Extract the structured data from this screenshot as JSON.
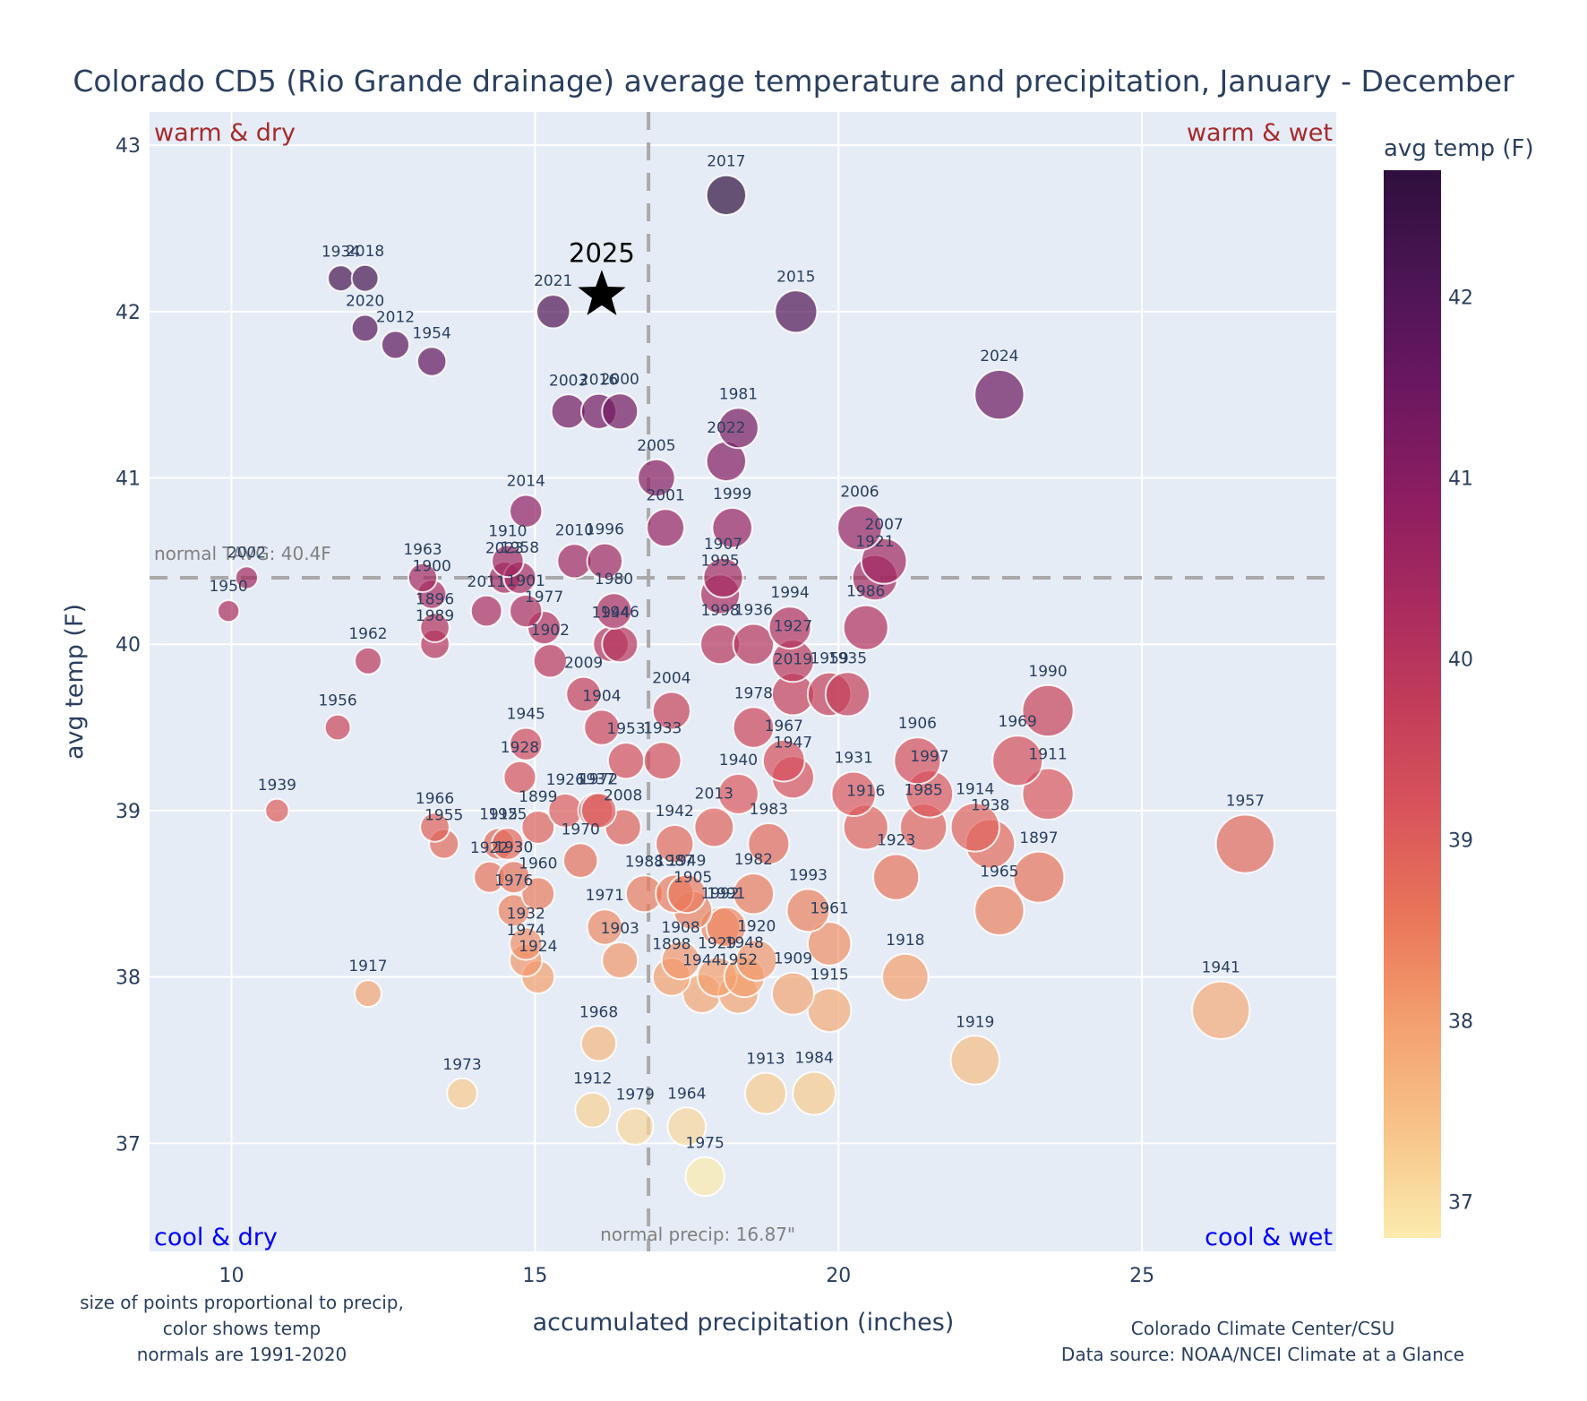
{
  "chart_data": {
    "type": "scatter",
    "title": "Colorado CD5 (Rio Grande drainage) average temperature and precipitation, January - December",
    "xlabel": "accumulated precipitation (inches)",
    "ylabel": "avg temp (F)",
    "xlim": [
      8.65,
      28.2
    ],
    "ylim": [
      36.35,
      43.2
    ],
    "xticks": [
      10,
      15,
      20,
      25
    ],
    "yticks": [
      37,
      38,
      39,
      40,
      41,
      42,
      43
    ],
    "grid": true,
    "size_encoding": "precipitation",
    "color_encoding": "avg temp (F)",
    "colorscale": [
      "#fcfdbf",
      "#fec287",
      "#fb8861",
      "#e3545c",
      "#b73779",
      "#8c2981",
      "#5f187f",
      "#2b1158",
      "#0d0887"
    ],
    "colorbar": {
      "title": "avg temp (F)",
      "range": [
        36.8,
        42.7
      ],
      "ticks": [
        37,
        38,
        39,
        40,
        41,
        42
      ],
      "stops": [
        "#fbebae",
        "#f7c48a",
        "#f4a06f",
        "#e9765a",
        "#d9545b",
        "#c23c5a",
        "#a72a5f",
        "#8a1d61",
        "#6a1760",
        "#4b1553",
        "#2e0f3d"
      ]
    },
    "reference_lines": {
      "normal_temp": 40.4,
      "normal_temp_label": "normal TAVG: 40.4F",
      "normal_precip": 16.87,
      "normal_precip_label": "normal precip: 16.87\""
    },
    "highlight": {
      "year": "2025",
      "precip": 16.1,
      "temp": 42.1,
      "marker": "star"
    },
    "quadrants": {
      "top_left": "warm & dry",
      "top_right": "warm & wet",
      "bottom_left": "cool & dry",
      "bottom_right": "cool & wet"
    },
    "points": [
      {
        "year": "2017",
        "precip": 18.15,
        "temp": 42.7
      },
      {
        "year": "1934",
        "precip": 11.8,
        "temp": 42.2
      },
      {
        "year": "2018",
        "precip": 12.2,
        "temp": 42.2
      },
      {
        "year": "2021",
        "precip": 15.3,
        "temp": 42.0
      },
      {
        "year": "2015",
        "precip": 19.3,
        "temp": 42.0
      },
      {
        "year": "2020",
        "precip": 12.2,
        "temp": 41.9
      },
      {
        "year": "2012",
        "precip": 12.7,
        "temp": 41.8
      },
      {
        "year": "1954",
        "precip": 13.3,
        "temp": 41.7
      },
      {
        "year": "2024",
        "precip": 22.65,
        "temp": 41.5
      },
      {
        "year": "2003",
        "precip": 15.55,
        "temp": 41.4
      },
      {
        "year": "2016",
        "precip": 16.05,
        "temp": 41.4
      },
      {
        "year": "2000",
        "precip": 16.4,
        "temp": 41.4
      },
      {
        "year": "1981",
        "precip": 18.35,
        "temp": 41.3
      },
      {
        "year": "2022",
        "precip": 18.15,
        "temp": 41.1
      },
      {
        "year": "2005",
        "precip": 17.0,
        "temp": 41.0
      },
      {
        "year": "2014",
        "precip": 14.85,
        "temp": 40.8
      },
      {
        "year": "2001",
        "precip": 17.15,
        "temp": 40.7
      },
      {
        "year": "1999",
        "precip": 18.25,
        "temp": 40.7
      },
      {
        "year": "2006",
        "precip": 20.35,
        "temp": 40.7
      },
      {
        "year": "2007",
        "precip": 20.75,
        "temp": 40.5
      },
      {
        "year": "1910",
        "precip": 14.55,
        "temp": 40.5
      },
      {
        "year": "2010",
        "precip": 15.65,
        "temp": 40.5
      },
      {
        "year": "1996",
        "precip": 16.15,
        "temp": 40.5
      },
      {
        "year": "2002",
        "precip": 10.25,
        "temp": 40.4
      },
      {
        "year": "1963",
        "precip": 13.15,
        "temp": 40.4
      },
      {
        "year": "2023",
        "precip": 14.5,
        "temp": 40.4
      },
      {
        "year": "1958",
        "precip": 14.75,
        "temp": 40.4
      },
      {
        "year": "1907",
        "precip": 18.1,
        "temp": 40.4
      },
      {
        "year": "1921",
        "precip": 20.6,
        "temp": 40.4
      },
      {
        "year": "1900",
        "precip": 13.3,
        "temp": 40.3
      },
      {
        "year": "1995",
        "precip": 18.05,
        "temp": 40.3
      },
      {
        "year": "2011",
        "precip": 14.2,
        "temp": 40.2
      },
      {
        "year": "1901",
        "precip": 14.85,
        "temp": 40.2
      },
      {
        "year": "1950",
        "precip": 9.95,
        "temp": 40.2
      },
      {
        "year": "1980",
        "precip": 16.3,
        "temp": 40.2
      },
      {
        "year": "1896",
        "precip": 13.35,
        "temp": 40.1
      },
      {
        "year": "1977",
        "precip": 15.15,
        "temp": 40.1
      },
      {
        "year": "1994",
        "precip": 19.2,
        "temp": 40.1
      },
      {
        "year": "1986",
        "precip": 20.45,
        "temp": 40.1
      },
      {
        "year": "1989",
        "precip": 13.35,
        "temp": 40.0
      },
      {
        "year": "1944",
        "precip": 16.25,
        "temp": 40.0
      },
      {
        "year": "1946",
        "precip": 16.4,
        "temp": 40.0
      },
      {
        "year": "1998",
        "precip": 18.05,
        "temp": 40.0
      },
      {
        "year": "1936",
        "precip": 18.6,
        "temp": 40.0
      },
      {
        "year": "1927",
        "precip": 19.25,
        "temp": 39.9
      },
      {
        "year": "1902",
        "precip": 15.25,
        "temp": 39.9
      },
      {
        "year": "1962",
        "precip": 12.25,
        "temp": 39.9
      },
      {
        "year": "2009",
        "precip": 15.8,
        "temp": 39.7
      },
      {
        "year": "2019",
        "precip": 19.25,
        "temp": 39.7
      },
      {
        "year": "1959",
        "precip": 19.85,
        "temp": 39.7
      },
      {
        "year": "1935",
        "precip": 20.15,
        "temp": 39.7
      },
      {
        "year": "2004",
        "precip": 17.25,
        "temp": 39.6
      },
      {
        "year": "1990",
        "precip": 23.45,
        "temp": 39.6
      },
      {
        "year": "1904",
        "precip": 16.1,
        "temp": 39.5
      },
      {
        "year": "1956",
        "precip": 11.75,
        "temp": 39.5
      },
      {
        "year": "1978",
        "precip": 18.6,
        "temp": 39.5
      },
      {
        "year": "1945",
        "precip": 14.85,
        "temp": 39.4
      },
      {
        "year": "1953",
        "precip": 16.5,
        "temp": 39.3
      },
      {
        "year": "1933",
        "precip": 17.1,
        "temp": 39.3
      },
      {
        "year": "1967",
        "precip": 19.1,
        "temp": 39.3
      },
      {
        "year": "1906",
        "precip": 21.3,
        "temp": 39.3
      },
      {
        "year": "1969",
        "precip": 22.95,
        "temp": 39.3
      },
      {
        "year": "1928",
        "precip": 14.75,
        "temp": 39.2
      },
      {
        "year": "1947",
        "precip": 19.25,
        "temp": 39.2
      },
      {
        "year": "1940",
        "precip": 18.35,
        "temp": 39.1
      },
      {
        "year": "1931",
        "precip": 20.25,
        "temp": 39.1
      },
      {
        "year": "1997",
        "precip": 21.5,
        "temp": 39.1
      },
      {
        "year": "1911",
        "precip": 23.45,
        "temp": 39.1
      },
      {
        "year": "1926",
        "precip": 15.5,
        "temp": 39.0
      },
      {
        "year": "1937",
        "precip": 16.0,
        "temp": 39.0
      },
      {
        "year": "1972",
        "precip": 16.05,
        "temp": 39.0
      },
      {
        "year": "1939",
        "precip": 10.75,
        "temp": 39.0
      },
      {
        "year": "1966",
        "precip": 13.35,
        "temp": 38.9
      },
      {
        "year": "1899",
        "precip": 15.05,
        "temp": 38.9
      },
      {
        "year": "2008",
        "precip": 16.45,
        "temp": 38.9
      },
      {
        "year": "2013",
        "precip": 17.95,
        "temp": 38.9
      },
      {
        "year": "1916",
        "precip": 20.45,
        "temp": 38.9
      },
      {
        "year": "1985",
        "precip": 21.4,
        "temp": 38.9
      },
      {
        "year": "1914",
        "precip": 22.25,
        "temp": 38.9
      },
      {
        "year": "1955",
        "precip": 13.5,
        "temp": 38.8
      },
      {
        "year": "1915",
        "precip": 14.4,
        "temp": 38.8
      },
      {
        "year": "1925",
        "precip": 14.55,
        "temp": 38.8
      },
      {
        "year": "1942",
        "precip": 17.3,
        "temp": 38.8
      },
      {
        "year": "1983",
        "precip": 18.85,
        "temp": 38.8
      },
      {
        "year": "1938",
        "precip": 22.5,
        "temp": 38.8
      },
      {
        "year": "1957",
        "precip": 26.7,
        "temp": 38.8
      },
      {
        "year": "1970",
        "precip": 15.75,
        "temp": 38.7
      },
      {
        "year": "1922",
        "precip": 14.25,
        "temp": 38.6
      },
      {
        "year": "1930",
        "precip": 14.65,
        "temp": 38.6
      },
      {
        "year": "1923",
        "precip": 20.95,
        "temp": 38.6
      },
      {
        "year": "1897",
        "precip": 23.3,
        "temp": 38.6
      },
      {
        "year": "1960",
        "precip": 15.05,
        "temp": 38.5
      },
      {
        "year": "1988",
        "precip": 16.8,
        "temp": 38.5
      },
      {
        "year": "1987",
        "precip": 17.3,
        "temp": 38.5
      },
      {
        "year": "1949",
        "precip": 17.5,
        "temp": 38.5
      },
      {
        "year": "1982",
        "precip": 18.6,
        "temp": 38.5
      },
      {
        "year": "1976",
        "precip": 14.65,
        "temp": 38.4
      },
      {
        "year": "1905",
        "precip": 17.6,
        "temp": 38.4
      },
      {
        "year": "1993",
        "precip": 19.5,
        "temp": 38.4
      },
      {
        "year": "1965",
        "precip": 22.65,
        "temp": 38.4
      },
      {
        "year": "1971",
        "precip": 16.15,
        "temp": 38.3
      },
      {
        "year": "1992",
        "precip": 18.05,
        "temp": 38.3
      },
      {
        "year": "1991",
        "precip": 18.15,
        "temp": 38.3
      },
      {
        "year": "1932",
        "precip": 14.85,
        "temp": 38.2
      },
      {
        "year": "1961",
        "precip": 19.85,
        "temp": 38.2
      },
      {
        "year": "1974",
        "precip": 14.85,
        "temp": 38.1
      },
      {
        "year": "1903",
        "precip": 16.4,
        "temp": 38.1
      },
      {
        "year": "1908",
        "precip": 17.4,
        "temp": 38.1
      },
      {
        "year": "1920",
        "precip": 18.65,
        "temp": 38.1
      },
      {
        "year": "1924",
        "precip": 15.05,
        "temp": 38.0
      },
      {
        "year": "1898",
        "precip": 17.25,
        "temp": 38.0
      },
      {
        "year": "1929",
        "precip": 18.0,
        "temp": 38.0
      },
      {
        "year": "1948",
        "precip": 18.45,
        "temp": 38.0
      },
      {
        "year": "1918",
        "precip": 21.1,
        "temp": 38.0
      },
      {
        "year": "1944b",
        "precip": 17.75,
        "temp": 37.9
      },
      {
        "year": "1952",
        "precip": 18.35,
        "temp": 37.9
      },
      {
        "year": "1909",
        "precip": 19.25,
        "temp": 37.9
      },
      {
        "year": "1917",
        "precip": 12.25,
        "temp": 37.9
      },
      {
        "year": "1915b",
        "precip": 19.85,
        "temp": 37.8
      },
      {
        "year": "1941",
        "precip": 26.3,
        "temp": 37.8
      },
      {
        "year": "1968",
        "precip": 16.05,
        "temp": 37.6
      },
      {
        "year": "1919",
        "precip": 22.25,
        "temp": 37.5
      },
      {
        "year": "1973",
        "precip": 13.8,
        "temp": 37.3
      },
      {
        "year": "1913",
        "precip": 18.8,
        "temp": 37.3
      },
      {
        "year": "1984",
        "precip": 19.6,
        "temp": 37.3
      },
      {
        "year": "1912",
        "precip": 15.95,
        "temp": 37.2
      },
      {
        "year": "1979",
        "precip": 16.65,
        "temp": 37.1
      },
      {
        "year": "1964",
        "precip": 17.5,
        "temp": 37.1
      },
      {
        "year": "1975",
        "precip": 17.8,
        "temp": 36.8
      }
    ],
    "annotations": {
      "bottom_left": [
        "size of points proportional to precip,",
        "color shows temp",
        "normals are 1991-2020"
      ],
      "bottom_right": [
        "Colorado Climate Center/CSU",
        "Data source: NOAA/NCEI Climate at a Glance"
      ]
    }
  }
}
